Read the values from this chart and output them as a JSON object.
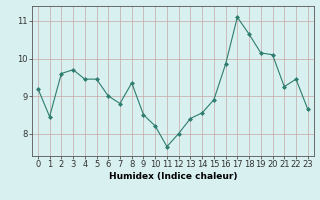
{
  "x": [
    0,
    1,
    2,
    3,
    4,
    5,
    6,
    7,
    8,
    9,
    10,
    11,
    12,
    13,
    14,
    15,
    16,
    17,
    18,
    19,
    20,
    21,
    22,
    23
  ],
  "y": [
    9.2,
    8.45,
    9.6,
    9.7,
    9.45,
    9.45,
    9.0,
    8.8,
    9.35,
    8.5,
    8.2,
    7.65,
    8.0,
    8.4,
    8.55,
    8.9,
    9.85,
    11.1,
    10.65,
    10.15,
    10.1,
    9.25,
    9.45,
    8.65
  ],
  "line_color": "#2e7d6e",
  "marker": "D",
  "marker_size": 2.0,
  "bg_color": "#d8f0f0",
  "grid_color_v": "#c8a8a8",
  "grid_color_h": "#c8a8a8",
  "xlabel": "Humidex (Indice chaleur)",
  "xlim": [
    -0.5,
    23.5
  ],
  "ylim": [
    7.4,
    11.4
  ],
  "yticks": [
    8,
    9,
    10,
    11
  ],
  "xticks": [
    0,
    1,
    2,
    3,
    4,
    5,
    6,
    7,
    8,
    9,
    10,
    11,
    12,
    13,
    14,
    15,
    16,
    17,
    18,
    19,
    20,
    21,
    22,
    23
  ],
  "label_fontsize": 6.5,
  "tick_fontsize": 6.0
}
